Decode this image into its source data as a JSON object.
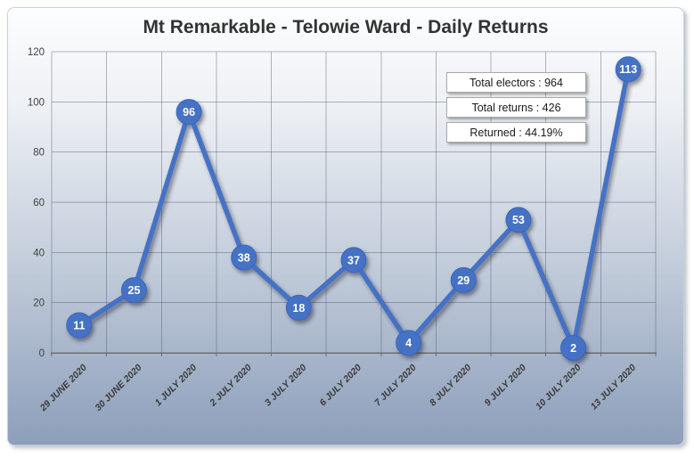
{
  "info_boxes": [
    {
      "text": "Total electors : 964"
    },
    {
      "text": "Total returns : 426"
    },
    {
      "text": "Returned : 44.19%"
    }
  ],
  "chart_data": {
    "type": "line",
    "title": "Mt Remarkable - Telowie Ward - Daily Returns",
    "categories": [
      "29 JUNE 2020",
      "30 JUNE 2020",
      "1 JULY 2020",
      "2 JULY 2020",
      "3 JULY 2020",
      "6 JULY 2020",
      "7 JULY 2020",
      "8 JULY 2020",
      "9 JULY 2020",
      "10 JULY 2020",
      "13 JULY 2020"
    ],
    "series": [
      {
        "name": "Daily Returns",
        "values": [
          11,
          25,
          96,
          38,
          18,
          37,
          4,
          29,
          53,
          2,
          113
        ]
      }
    ],
    "xlabel": "",
    "ylabel": "",
    "ylim": [
      0,
      120
    ],
    "y_ticks": [
      0,
      20,
      40,
      60,
      80,
      100,
      120
    ],
    "grid": true,
    "legend": "none",
    "colors": {
      "line": "#4472C4",
      "marker_fill": "#4472C4",
      "data_label_text": "#ffffff",
      "background_top": "#fcfdfe",
      "background_bottom": "#8c9eba",
      "gridline": "#4a5568",
      "title_text": "#333333"
    }
  }
}
